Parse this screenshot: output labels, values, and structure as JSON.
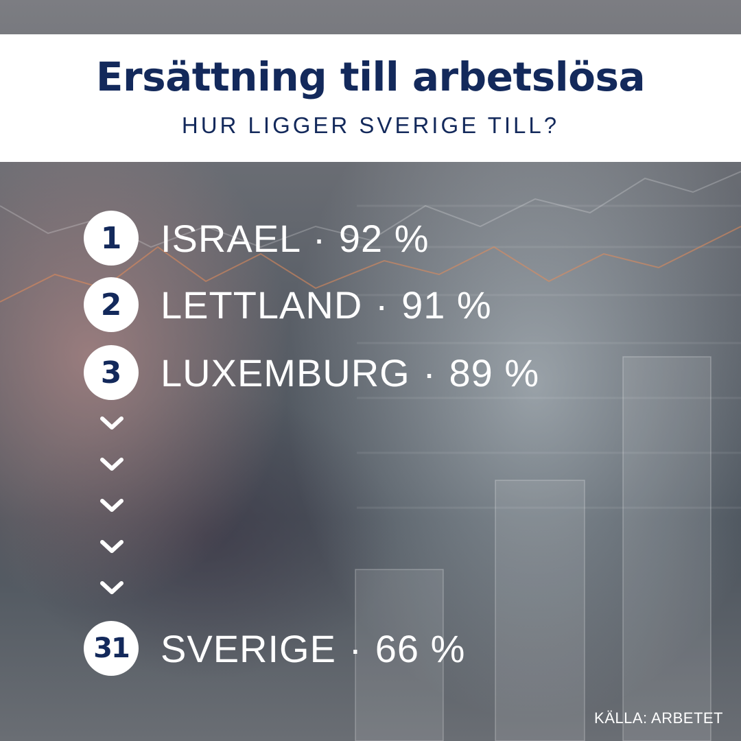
{
  "header": {
    "title": "Ersättning till arbetslösa",
    "subtitle": "HUR LIGGER SVERIGE TILL?"
  },
  "ranking": [
    {
      "rank": "1",
      "country": "ISRAEL",
      "value": "92 %"
    },
    {
      "rank": "2",
      "country": "LETTLAND",
      "value": "91 %"
    },
    {
      "rank": "3",
      "country": "LUXEMBURG",
      "value": "89 %"
    },
    {
      "rank": "31",
      "country": "SVERIGE",
      "value": "66 %"
    }
  ],
  "separator": "·",
  "icons": [
    "chevron-down-icon"
  ],
  "source": "KÄLLA: ARBETET",
  "colors": {
    "brand": "#13295b",
    "text": "#ffffff",
    "header_bg": "#ffffff"
  }
}
